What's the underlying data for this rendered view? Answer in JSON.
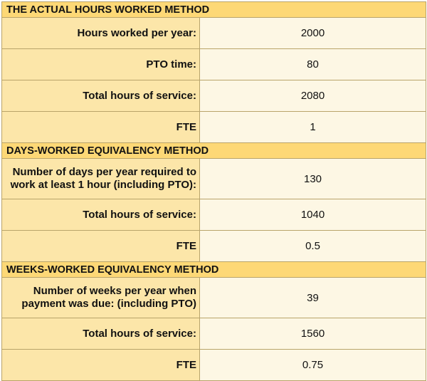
{
  "sections": [
    {
      "title": "THE ACTUAL HOURS WORKED METHOD",
      "rows": [
        {
          "label": "Hours worked per year:",
          "value": "2000"
        },
        {
          "label": "PTO time:",
          "value": "80"
        },
        {
          "label": "Total hours of service:",
          "value": "2080"
        },
        {
          "label": "FTE",
          "value": "1"
        }
      ]
    },
    {
      "title": "DAYS-WORKED EQUIVALENCY METHOD",
      "rows": [
        {
          "label": "Number of days per year required to work at least 1 hour (including PTO):",
          "value": "130"
        },
        {
          "label": "Total hours of service:",
          "value": "1040"
        },
        {
          "label": "FTE",
          "value": "0.5"
        }
      ]
    },
    {
      "title": "WEEKS-WORKED EQUIVALENCY METHOD",
      "rows": [
        {
          "label": "Number of weeks per year when payment was due: (including PTO)",
          "value": "39"
        },
        {
          "label": "Total hours of service:",
          "value": "1560"
        },
        {
          "label": "FTE",
          "value": "0.75"
        }
      ]
    }
  ]
}
